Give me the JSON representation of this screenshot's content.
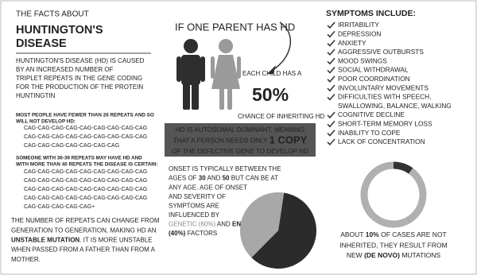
{
  "header": {
    "pre": "THE FACTS ABOUT",
    "title_lines": [
      "HUNTINGTON'S",
      "DISEASE"
    ]
  },
  "intro_lines": [
    "HUNTINGTON'S DISEASE (HD) IS CAUSED",
    "BY AN INCREASED NUMBER OF",
    "TRIPLET REPEATS IN THE GENE CODING",
    "FOR THE PRODUCTION OF THE PROTEIN",
    "HUNTINGTIN"
  ],
  "normal": {
    "heading_lines": [
      "MOST PEOPLE HAVE FEWER THAN 26 REPEATS AND SO",
      "WILL NOT DEVELOP HD:"
    ],
    "cag_lines": [
      "CAG-CAG-CAG-CAG-CAG-CAG-CAG-CAG-CAG",
      "CAG-CAG-CAG-CAG-CAG-CAG-CAG-CAG-CAG",
      "CAG-CAG-CAG-CAG-CAG-CAG-CAG"
    ]
  },
  "affected": {
    "heading_lines": [
      "SOMEONE WITH 36-39 REPEATS MAY HAVE HD AND",
      "WITH MORE THAN 40 REPEATS THE DISEASE IS CERTAIN:"
    ],
    "cag_lines": [
      "CAG-CAG-CAG-CAG-CAG-CAG-CAG-CAG-CAG",
      "CAG-CAG-CAG-CAG-CAG-CAG-CAG-CAG-CAG",
      "CAG-CAG-CAG-CAG-CAG-CAG-CAG-CAG-CAG",
      "CAG-CAG-CAG-CAG-CAG-CAG-CAG-CAG-CAG",
      "CAG-CAG-CAG-CAG-CAG+"
    ]
  },
  "unstable_lines": [
    "THE NUMBER OF REPEATS CAN CHANGE FROM",
    "GENERATION TO GENERATION, MAKING HD AN",
    [
      {
        "text": "UNSTABLE MUTATION",
        "style": "bold"
      },
      ". IT IS MORE UNSTABLE"
    ],
    "WHEN PASSED FROM A FATHER THAN FROM A",
    "MOTHER."
  ],
  "parent": {
    "heading": "IF ONE PARENT HAS HD",
    "child": "EACH CHILD HAS A",
    "percent": "50%",
    "chance": "CHANCE OF INHERITING HD"
  },
  "dominant_lines": [
    "HD IS AUTOSOMAL DOMINANT, MEANING",
    [
      "THAT A PERSON NEEDS ONLY ",
      {
        "text": "1 COPY",
        "style": "big"
      }
    ],
    "OF THE DEFECTIVE GENE TO DEVELOP HD"
  ],
  "onset_lines": [
    "ONSET IS TYPICALLY BETWEEN THE",
    [
      "AGES OF ",
      {
        "text": "30",
        "style": "bold"
      },
      " AND ",
      {
        "text": "50",
        "style": "bold"
      },
      " BUT CAN BE AT"
    ],
    "ANY AGE.  AGE OF ONSET",
    "AND SEVERITY OF",
    "SYMPTOMS ARE",
    "INFLUENCED BY",
    [
      {
        "text": "GENETIC (60%)",
        "style": "gray"
      },
      " AND ",
      {
        "text": "ENVIRONMENTAL",
        "style": "bold"
      }
    ],
    [
      {
        "text": "(40%)",
        "style": "bold"
      },
      " FACTORS"
    ]
  ],
  "onset_pie": {
    "values": [
      60,
      40
    ],
    "colors": [
      "#2b2b2b",
      "#a8a8a8"
    ]
  },
  "symptoms": {
    "heading": "SYMPTOMS INCLUDE:",
    "items": [
      [
        "IRRITABILITY"
      ],
      [
        "DEPRESSION"
      ],
      [
        "ANXIETY"
      ],
      [
        "AGGRESSIVE OUTBURSTS"
      ],
      [
        "MOOD SWINGS"
      ],
      [
        "SOCIAL WITHDRAWAL"
      ],
      [
        "POOR COORDINATION"
      ],
      [
        "INVOLUNTARY MOVEMENTS"
      ],
      [
        "DIFFICULTIES WITH SPEECH,",
        "SWALLOWING, BALANCE, WALKING"
      ],
      [
        "COGNITIVE DECLINE"
      ],
      [
        "SHORT-TERM MEMORY LOSS"
      ],
      [
        "INABILITY TO COPE"
      ],
      [
        "LACK OF CONCENTRATION"
      ]
    ]
  },
  "novo_donut": {
    "values": [
      10,
      90
    ],
    "colors": [
      "#333333",
      "#b0b0b0"
    ]
  },
  "novo_lines": [
    [
      "ABOUT ",
      {
        "text": "10%",
        "style": "bold"
      },
      " OF CASES ARE NOT"
    ],
    "INHERITED, THEY RESULT FROM",
    [
      "NEW ",
      {
        "text": "(DE NOVO)",
        "style": "bold"
      },
      " MUTATIONS"
    ]
  ]
}
